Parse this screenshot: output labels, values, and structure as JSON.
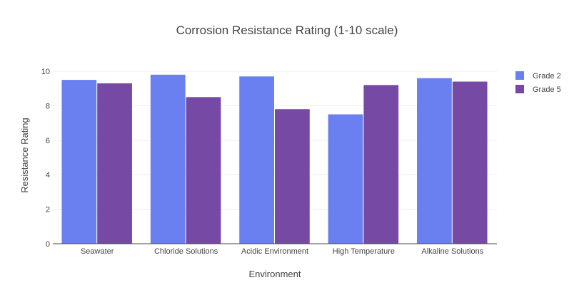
{
  "chart_data": {
    "type": "bar",
    "title": "Corrosion Resistance Rating (1-10 scale)",
    "xlabel": "Environment",
    "ylabel": "Resistance Rating",
    "categories": [
      "Seawater",
      "Chloride Solutions",
      "Acidic Environment",
      "High Temperature",
      "Alkaline Solutions"
    ],
    "series": [
      {
        "name": "Grade 2",
        "color": "#6a7ff0",
        "values": [
          9.5,
          9.8,
          9.7,
          7.5,
          9.6
        ]
      },
      {
        "name": "Grade 5",
        "color": "#7649a4",
        "values": [
          9.3,
          8.5,
          7.8,
          9.2,
          9.4
        ]
      }
    ],
    "ylim": [
      0,
      10
    ],
    "yticks": [
      0,
      2,
      4,
      6,
      8,
      10
    ],
    "grid": true,
    "legend_position": "top-right"
  }
}
